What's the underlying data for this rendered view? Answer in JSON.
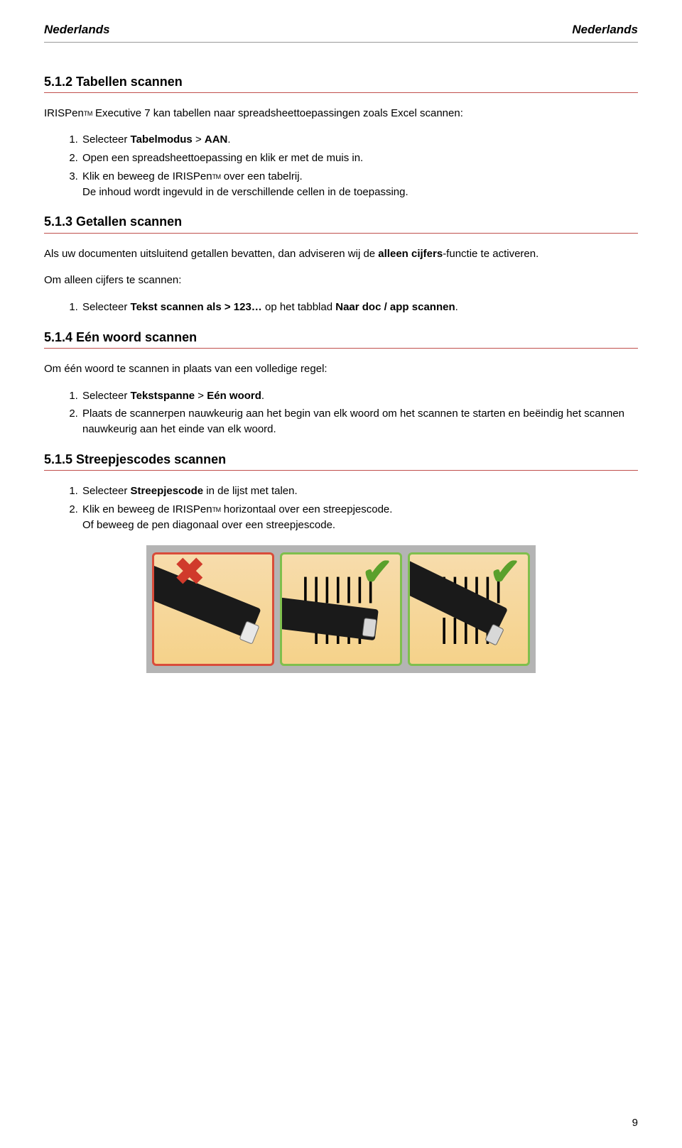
{
  "header": {
    "left": "Nederlands",
    "right": "Nederlands"
  },
  "colors": {
    "rule": "#c0504d",
    "panel_bad_border": "#d94c3a",
    "panel_good_border": "#7fbf4d",
    "cross": "#d03a2b",
    "check": "#5aa02c",
    "figure_bg": "#b4b4b4",
    "panel_bg_top": "#f7dcac",
    "panel_bg_bottom": "#f5d28a"
  },
  "trademark": "TM",
  "s512": {
    "title": "5.1.2 Tabellen scannen",
    "intro_a": "IRISPen",
    "intro_b": " Executive 7 kan tabellen naar spreadsheettoepassingen zoals Excel scannen:",
    "li1_a": "Selecteer ",
    "li1_b": "Tabelmodus",
    "li1_c": " > ",
    "li1_d": "AAN",
    "li1_e": ".",
    "li2": "Open een spreadsheettoepassing en klik er met de muis in.",
    "li3_a": "Klik en beweeg de IRISPen",
    "li3_b": " over een tabelrij.",
    "li3_c": "De inhoud wordt ingevuld in de verschillende cellen in de toepassing."
  },
  "s513": {
    "title": "5.1.3 Getallen scannen",
    "p1_a": "Als uw documenten uitsluitend getallen bevatten, dan adviseren wij de ",
    "p1_b": "alleen cijfers",
    "p1_c": "-functie te activeren.",
    "p2": "Om alleen cijfers te scannen:",
    "li1_a": "Selecteer ",
    "li1_b": "Tekst scannen als",
    "li1_c": " > ",
    "li1_d": "123…",
    "li1_e": " op het tabblad ",
    "li1_f": "Naar doc / app scannen",
    "li1_g": "."
  },
  "s514": {
    "title": "5.1.4 Eén woord scannen",
    "p1": "Om één woord te scannen in plaats van een volledige regel:",
    "li1_a": "Selecteer ",
    "li1_b": "Tekstspanne",
    "li1_c": " > ",
    "li1_d": "Eén woord",
    "li1_e": ".",
    "li2": "Plaats de scannerpen nauwkeurig aan het begin van elk woord om het scannen te starten en beëindig het scannen nauwkeurig aan het einde van elk woord."
  },
  "s515": {
    "title": "5.1.5 Streepjescodes scannen",
    "li1_a": "Selecteer ",
    "li1_b": "Streepjescode",
    "li1_c": " in de lijst met talen.",
    "li2_a": "Klik en beweeg de IRISPen",
    "li2_b": " horizontaal over een streepjescode.",
    "li2_c": "Of beweeg de pen diagonaal over een streepjescode."
  },
  "figure": {
    "mark_bad": "✖",
    "mark_good": "✔",
    "barcode_glyph": "||||||| |||||"
  },
  "page_number": "9"
}
